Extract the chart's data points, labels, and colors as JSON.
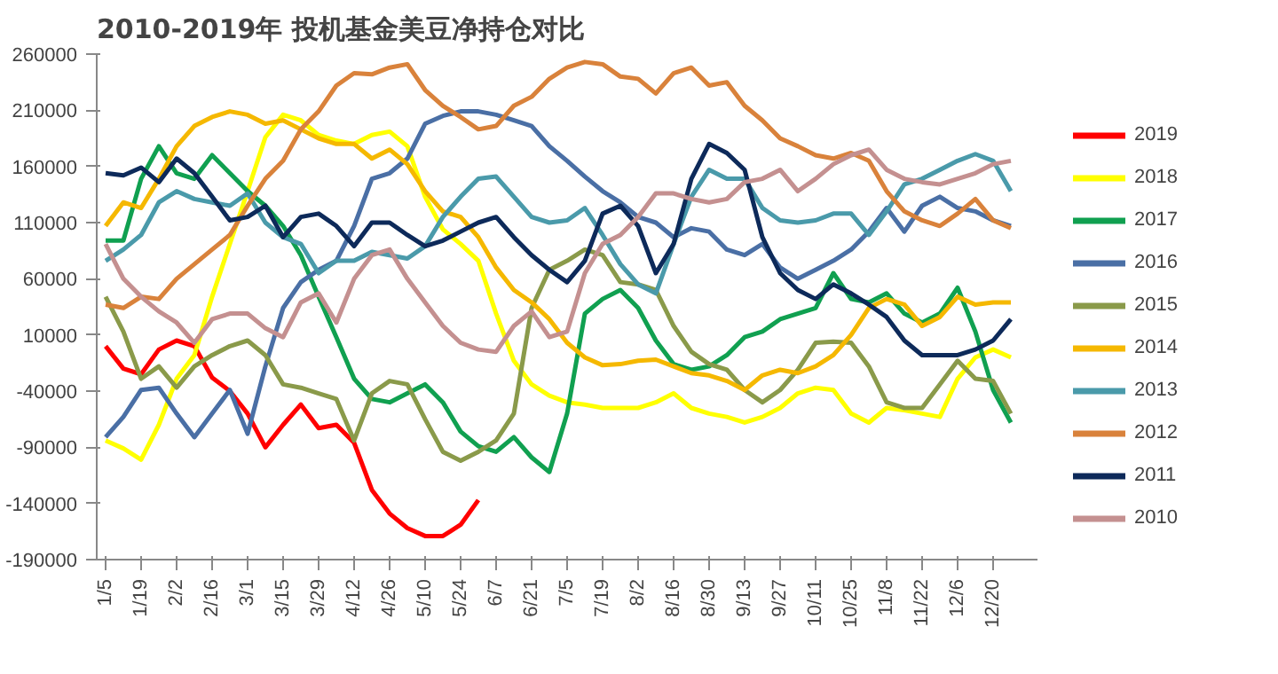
{
  "chart_data": {
    "type": "line",
    "title": "2010-2019年 投机基金美豆净持仓对比",
    "categories": [
      "1/5",
      null,
      "1/19",
      null,
      "2/2",
      null,
      "2/16",
      null,
      "3/1",
      null,
      "3/15",
      null,
      "3/29",
      null,
      "4/12",
      null,
      "4/26",
      null,
      "5/10",
      null,
      "5/24",
      null,
      "6/7",
      null,
      "6/21",
      null,
      "7/5",
      null,
      "7/19",
      null,
      "8/2",
      null,
      "8/16",
      null,
      "8/30",
      null,
      "9/13",
      null,
      "9/27",
      null,
      "10/11",
      null,
      "10/25",
      null,
      "11/8",
      null,
      "11/22",
      null,
      "12/6",
      null,
      "12/20",
      null
    ],
    "series": [
      {
        "name": "2019",
        "color": "#ff0000",
        "values": [
          0,
          -20000,
          -25000,
          -3000,
          5000,
          0,
          -28000,
          -40000,
          -60000,
          -90000,
          -70000,
          -52000,
          -73000,
          -70000,
          -86000,
          -128000,
          -149000,
          -162000,
          -169000,
          -169000,
          -159000,
          -137000,
          null,
          null,
          null,
          null,
          null,
          null,
          null,
          null,
          null,
          null,
          null,
          null,
          null,
          null,
          null,
          null,
          null,
          null,
          null,
          null,
          null,
          null,
          null,
          null,
          null,
          null,
          null,
          null,
          null,
          null
        ]
      },
      {
        "name": "2018",
        "color": "#ffff00",
        "values": [
          -84000,
          -91000,
          -101000,
          -70000,
          -29000,
          -8000,
          44000,
          91000,
          138000,
          186000,
          206000,
          201000,
          188000,
          183000,
          180000,
          188000,
          191000,
          178000,
          133000,
          104000,
          91000,
          76000,
          29000,
          -13000,
          -34000,
          -44000,
          -50000,
          -52000,
          -55000,
          -55000,
          -55000,
          -50000,
          -42000,
          -55000,
          -60000,
          -63000,
          -68000,
          -63000,
          -55000,
          -42000,
          -37000,
          -39000,
          -60000,
          -68000,
          -55000,
          -57000,
          -60000,
          -63000,
          -29000,
          -10000,
          -3000,
          -10000
        ]
      },
      {
        "name": "2017",
        "color": "#10a050",
        "values": [
          94000,
          94000,
          149000,
          178000,
          154000,
          149000,
          170000,
          154000,
          138000,
          125000,
          107000,
          81000,
          44000,
          8000,
          -29000,
          -47000,
          -50000,
          -42000,
          -34000,
          -50000,
          -76000,
          -89000,
          -94000,
          -81000,
          -99000,
          -112000,
          -60000,
          29000,
          42000,
          50000,
          34000,
          5000,
          -16000,
          -21000,
          -18000,
          -8000,
          8000,
          13000,
          24000,
          29000,
          34000,
          65000,
          42000,
          39000,
          47000,
          29000,
          21000,
          29000,
          52000,
          13000,
          -39000,
          -68000
        ]
      },
      {
        "name": "2016",
        "color": "#4a6fa5",
        "values": [
          -81000,
          -63000,
          -39000,
          -37000,
          -60000,
          -81000,
          -60000,
          -39000,
          -78000,
          -18000,
          34000,
          57000,
          68000,
          76000,
          107000,
          149000,
          154000,
          167000,
          198000,
          205000,
          209000,
          209000,
          206000,
          201000,
          196000,
          178000,
          165000,
          151000,
          138000,
          128000,
          115000,
          110000,
          97000,
          105000,
          102000,
          86000,
          81000,
          91000,
          70000,
          60000,
          68000,
          76000,
          86000,
          102000,
          123000,
          102000,
          125000,
          133000,
          123000,
          120000,
          112000,
          107000
        ]
      },
      {
        "name": "2015",
        "color": "#8a9a4a",
        "values": [
          44000,
          13000,
          -29000,
          -18000,
          -37000,
          -18000,
          -8000,
          0,
          5000,
          -8000,
          -34000,
          -37000,
          -42000,
          -47000,
          -84000,
          -42000,
          -31000,
          -34000,
          -65000,
          -94000,
          -102000,
          -94000,
          -84000,
          -60000,
          34000,
          68000,
          76000,
          86000,
          81000,
          57000,
          55000,
          50000,
          18000,
          -5000,
          -16000,
          -21000,
          -39000,
          -50000,
          -39000,
          -21000,
          3000,
          4000,
          3000,
          -18000,
          -50000,
          -55000,
          -55000,
          -34000,
          -13000,
          -29000,
          -31000,
          -60000
        ]
      },
      {
        "name": "2014",
        "color": "#f5b800",
        "values": [
          107000,
          128000,
          123000,
          149000,
          178000,
          196000,
          204000,
          209000,
          206000,
          198000,
          201000,
          193000,
          185000,
          180000,
          180000,
          167000,
          175000,
          162000,
          138000,
          120000,
          115000,
          97000,
          70000,
          50000,
          39000,
          24000,
          3000,
          -10000,
          -17000,
          -16000,
          -13000,
          -12000,
          -18000,
          -24000,
          -26000,
          -31000,
          -39000,
          -26000,
          -21000,
          -24000,
          -18000,
          -8000,
          10000,
          34000,
          42000,
          37000,
          18000,
          26000,
          44000,
          37000,
          39000,
          39000
        ]
      },
      {
        "name": "2013",
        "color": "#4a9aaa",
        "values": [
          76000,
          86000,
          99000,
          128000,
          138000,
          131000,
          128000,
          125000,
          136000,
          110000,
          97000,
          91000,
          65000,
          76000,
          76000,
          84000,
          81000,
          78000,
          89000,
          115000,
          133000,
          149000,
          151000,
          133000,
          115000,
          110000,
          112000,
          123000,
          99000,
          73000,
          55000,
          47000,
          91000,
          133000,
          157000,
          149000,
          149000,
          123000,
          112000,
          110000,
          112000,
          118000,
          118000,
          99000,
          120000,
          144000,
          149000,
          157000,
          165000,
          171000,
          165000,
          138000
        ]
      },
      {
        "name": "2012",
        "color": "#d9823b",
        "values": [
          37000,
          34000,
          44000,
          42000,
          60000,
          73000,
          86000,
          99000,
          125000,
          149000,
          165000,
          193000,
          209000,
          232000,
          243000,
          242000,
          248000,
          251000,
          228000,
          214000,
          204000,
          193000,
          196000,
          214000,
          222000,
          238000,
          248000,
          253000,
          251000,
          240000,
          238000,
          225000,
          243000,
          248000,
          232000,
          235000,
          214000,
          201000,
          185000,
          178000,
          170000,
          167000,
          172000,
          165000,
          138000,
          120000,
          112000,
          107000,
          118000,
          131000,
          112000,
          105000
        ]
      },
      {
        "name": "2011",
        "color": "#0d2a5a",
        "values": [
          154000,
          152000,
          159000,
          146000,
          167000,
          154000,
          133000,
          112000,
          115000,
          125000,
          97000,
          115000,
          118000,
          107000,
          89000,
          110000,
          110000,
          99000,
          89000,
          94000,
          102000,
          110000,
          115000,
          97000,
          81000,
          68000,
          57000,
          76000,
          118000,
          125000,
          107000,
          65000,
          91000,
          149000,
          180000,
          172000,
          157000,
          97000,
          65000,
          50000,
          42000,
          55000,
          47000,
          37000,
          26000,
          5000,
          -8000,
          -8000,
          -8000,
          -3000,
          5000,
          24000
        ]
      },
      {
        "name": "2010",
        "color": "#c49090",
        "values": [
          91000,
          60000,
          44000,
          31000,
          21000,
          3000,
          24000,
          29000,
          29000,
          16000,
          8000,
          39000,
          47000,
          21000,
          60000,
          81000,
          86000,
          60000,
          39000,
          18000,
          3000,
          -3000,
          -5000,
          18000,
          31000,
          8000,
          13000,
          65000,
          91000,
          99000,
          115000,
          136000,
          136000,
          131000,
          128000,
          131000,
          146000,
          149000,
          157000,
          138000,
          149000,
          162000,
          170000,
          175000,
          157000,
          149000,
          146000,
          144000,
          149000,
          154000,
          162000,
          165000
        ]
      }
    ],
    "ylim": [
      -190000,
      260000
    ],
    "yticks": [
      -190000,
      -140000,
      -90000,
      -40000,
      10000,
      60000,
      110000,
      160000,
      210000,
      260000
    ],
    "grid": false,
    "legend": "right"
  }
}
